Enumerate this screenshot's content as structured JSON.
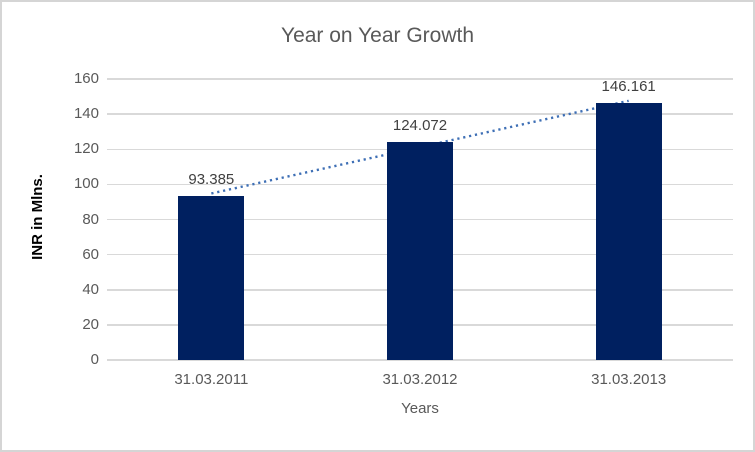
{
  "chart_data": {
    "type": "bar",
    "title": "Year on Year Growth",
    "categories": [
      "31.03.2011",
      "31.03.2012",
      "31.03.2013"
    ],
    "values": [
      93.385,
      124.072,
      146.161
    ],
    "data_labels": [
      "93.385",
      "124.072",
      "146.161"
    ],
    "xlabel": "Years",
    "ylabel": "INR in Mlns.",
    "ylim": [
      0,
      160
    ],
    "ytick_step": 20,
    "yticks": [
      "0",
      "20",
      "40",
      "60",
      "80",
      "100",
      "120",
      "140",
      "160"
    ],
    "grid": true,
    "legend": false,
    "trendline": {
      "type": "linear",
      "style": "dotted"
    },
    "colors": {
      "bar": "#002060",
      "trendline": "#3E6FB5",
      "gridline": "#D9D9D9",
      "axis_line": "#D9D9D9",
      "tick_label": "#595959",
      "title": "#595959",
      "data_label": "#404040",
      "ylabel_text": "#000000",
      "xlabel_text": "#595959",
      "border": "#D5D5D5",
      "background": "#FFFFFF"
    }
  }
}
